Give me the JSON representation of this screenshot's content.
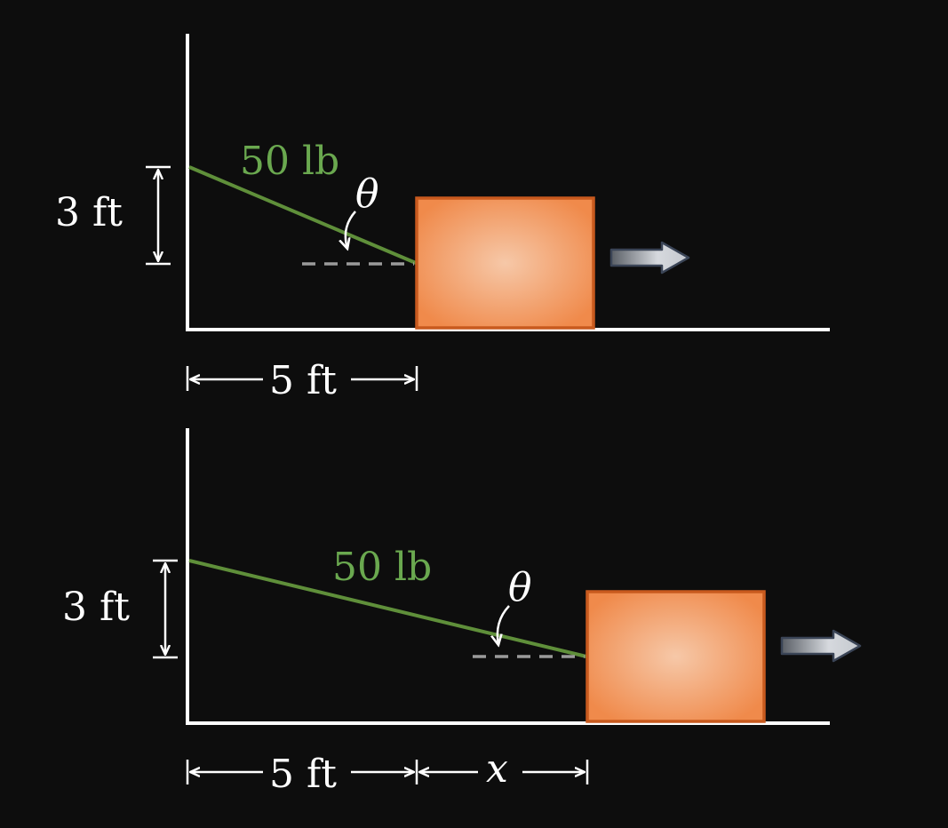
{
  "colors": {
    "background": "#0d0d0d",
    "axis": "#ffffff",
    "rope": "#5f8f3a",
    "force_label": "#6aa84f",
    "dashed_reference": "#9a9a9a",
    "block_fill_center": "#f6c8a8",
    "block_fill_edge": "#f08a4b",
    "block_stroke": "#c85a1e",
    "motion_arrow_fill": "#c8ccd2",
    "motion_arrow_stroke": "#3a4456"
  },
  "icons": {
    "motion": "right-arrow-icon",
    "angle_pointer": "curved-arrow-icon"
  },
  "top_figure": {
    "force_label": "50 lb",
    "angle_label": "θ",
    "height_label": "3 ft",
    "distance_label": "5 ft"
  },
  "bottom_figure": {
    "force_label": "50 lb",
    "angle_label": "θ",
    "height_label": "3 ft",
    "distance_label": "5 ft",
    "extra_distance_label": "x"
  }
}
